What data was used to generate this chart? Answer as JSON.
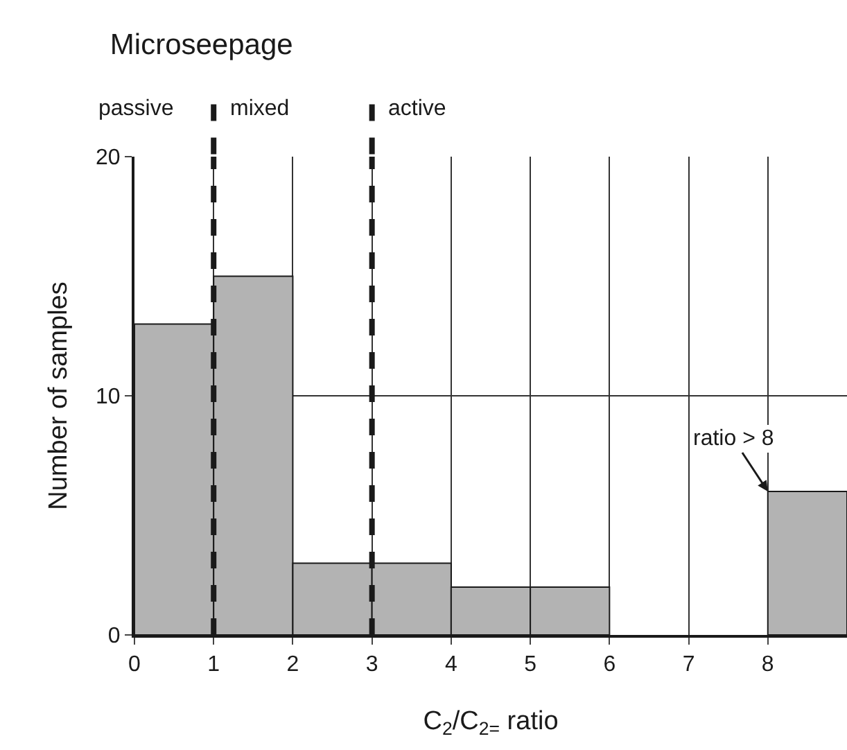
{
  "chart_data": {
    "type": "histogram",
    "title": "Microseepage",
    "xlabel": "C$_{2}$/C$_{2=}$ ratio",
    "ylabel": "Number of samples",
    "bins": [
      0,
      1,
      2,
      3,
      4,
      5,
      6,
      7,
      8,
      9
    ],
    "values": [
      13,
      15,
      3,
      3,
      2,
      2,
      0,
      0,
      6
    ],
    "color": "#b3b3b3",
    "xlim": [
      0,
      9
    ],
    "xticks": [
      0,
      1,
      2,
      3,
      4,
      5,
      6,
      7,
      8
    ],
    "ylim": [
      0,
      20
    ],
    "yticks": [
      0,
      10,
      20
    ],
    "grid": true,
    "ref_lines": [
      {
        "axis": "x",
        "value": 1,
        "line_style": "dashed",
        "color": "#1a1a1a",
        "label": "mixed"
      },
      {
        "axis": "x",
        "value": 3,
        "line_style": "dashed",
        "color": "#1a1a1a",
        "label": "active"
      }
    ],
    "annotations": [
      "passive",
      {
        "text": "ratio > 8",
        "x": 8,
        "y": 6
      }
    ]
  }
}
